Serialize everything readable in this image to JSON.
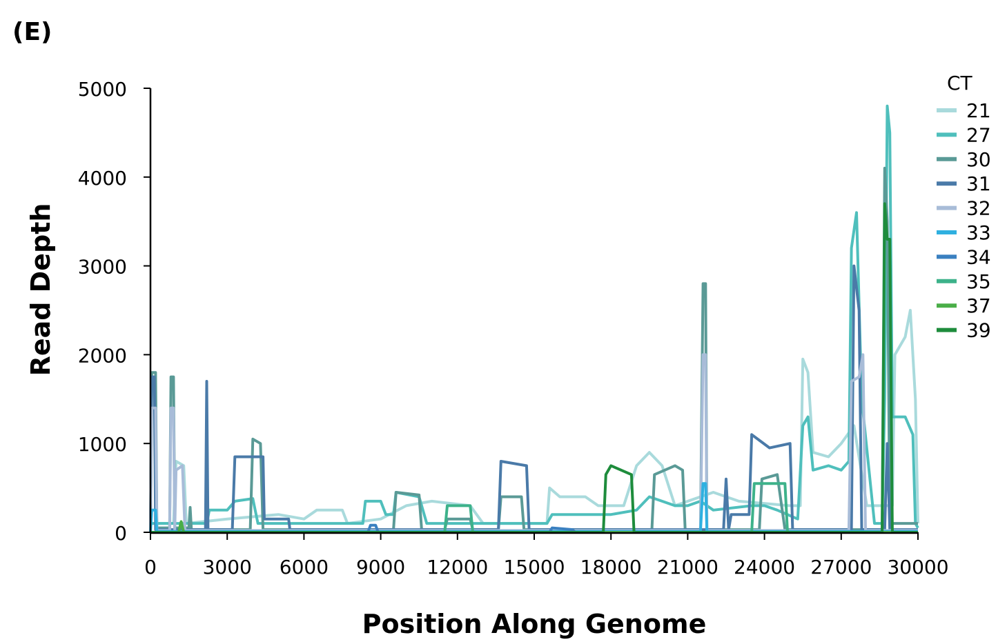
{
  "panel_label": "(E)",
  "chart_data": {
    "type": "line",
    "title": "",
    "xlabel": "Position Along Genome",
    "ylabel": "Read Depth",
    "xlim": [
      0,
      30000
    ],
    "ylim": [
      0,
      5000
    ],
    "xticks": [
      0,
      3000,
      6000,
      9000,
      12000,
      15000,
      18000,
      21000,
      24000,
      27000,
      30000
    ],
    "yticks": [
      0,
      1000,
      2000,
      3000,
      4000,
      5000
    ],
    "grid": false,
    "legend": {
      "title": "CT",
      "placement": "top-right"
    },
    "series": [
      {
        "name": "21",
        "color": "#a9dadc",
        "points": [
          [
            0,
            100
          ],
          [
            900,
            100
          ],
          [
            1000,
            800
          ],
          [
            1300,
            750
          ],
          [
            1400,
            100
          ],
          [
            3000,
            150
          ],
          [
            5000,
            200
          ],
          [
            6000,
            150
          ],
          [
            6500,
            250
          ],
          [
            7500,
            250
          ],
          [
            7700,
            100
          ],
          [
            9000,
            150
          ],
          [
            10000,
            300
          ],
          [
            11000,
            350
          ],
          [
            12500,
            300
          ],
          [
            13000,
            100
          ],
          [
            15500,
            100
          ],
          [
            15600,
            500
          ],
          [
            16000,
            400
          ],
          [
            17000,
            400
          ],
          [
            17500,
            300
          ],
          [
            18500,
            300
          ],
          [
            19000,
            750
          ],
          [
            19500,
            900
          ],
          [
            20000,
            750
          ],
          [
            20500,
            300
          ],
          [
            22000,
            450
          ],
          [
            23000,
            350
          ],
          [
            25000,
            300
          ],
          [
            25400,
            300
          ],
          [
            25500,
            1950
          ],
          [
            25700,
            1800
          ],
          [
            25900,
            900
          ],
          [
            26500,
            850
          ],
          [
            27000,
            1000
          ],
          [
            27500,
            1200
          ],
          [
            28000,
            300
          ],
          [
            29000,
            300
          ],
          [
            29100,
            2000
          ],
          [
            29500,
            2200
          ],
          [
            29700,
            2500
          ],
          [
            29900,
            1500
          ],
          [
            30000,
            100
          ]
        ]
      },
      {
        "name": "27",
        "color": "#4fbfbc",
        "points": [
          [
            0,
            100
          ],
          [
            2200,
            100
          ],
          [
            2300,
            250
          ],
          [
            3000,
            250
          ],
          [
            3300,
            350
          ],
          [
            4000,
            380
          ],
          [
            4200,
            100
          ],
          [
            6000,
            100
          ],
          [
            8300,
            100
          ],
          [
            8400,
            350
          ],
          [
            9000,
            350
          ],
          [
            9200,
            200
          ],
          [
            9500,
            200
          ],
          [
            9600,
            450
          ],
          [
            10500,
            400
          ],
          [
            10800,
            100
          ],
          [
            15500,
            100
          ],
          [
            15700,
            200
          ],
          [
            17500,
            200
          ],
          [
            18000,
            200
          ],
          [
            19000,
            250
          ],
          [
            19500,
            400
          ],
          [
            20000,
            350
          ],
          [
            20500,
            300
          ],
          [
            21000,
            300
          ],
          [
            21500,
            350
          ],
          [
            22000,
            250
          ],
          [
            23500,
            300
          ],
          [
            24000,
            300
          ],
          [
            24500,
            250
          ],
          [
            25300,
            150
          ],
          [
            25500,
            1200
          ],
          [
            25700,
            1300
          ],
          [
            25900,
            700
          ],
          [
            26500,
            750
          ],
          [
            27000,
            700
          ],
          [
            27300,
            800
          ],
          [
            27400,
            3200
          ],
          [
            27600,
            3600
          ],
          [
            27800,
            1500
          ],
          [
            28300,
            100
          ],
          [
            28600,
            100
          ],
          [
            28700,
            1500
          ],
          [
            28800,
            4800
          ],
          [
            28900,
            4500
          ],
          [
            29000,
            1300
          ],
          [
            29500,
            1300
          ],
          [
            29800,
            1100
          ],
          [
            29900,
            100
          ],
          [
            30000,
            50
          ]
        ]
      },
      {
        "name": "30",
        "color": "#5a9a96",
        "points": [
          [
            0,
            0
          ],
          [
            50,
            1800
          ],
          [
            200,
            1800
          ],
          [
            250,
            50
          ],
          [
            750,
            50
          ],
          [
            800,
            1750
          ],
          [
            900,
            1750
          ],
          [
            950,
            50
          ],
          [
            1500,
            50
          ],
          [
            1550,
            280
          ],
          [
            1600,
            30
          ],
          [
            3900,
            30
          ],
          [
            4000,
            1050
          ],
          [
            4300,
            1000
          ],
          [
            4400,
            30
          ],
          [
            9500,
            30
          ],
          [
            9600,
            450
          ],
          [
            10500,
            420
          ],
          [
            10600,
            30
          ],
          [
            11500,
            30
          ],
          [
            11600,
            150
          ],
          [
            12500,
            150
          ],
          [
            12600,
            30
          ],
          [
            13600,
            30
          ],
          [
            13700,
            400
          ],
          [
            14500,
            400
          ],
          [
            14600,
            30
          ],
          [
            19600,
            30
          ],
          [
            19700,
            650
          ],
          [
            20500,
            750
          ],
          [
            20800,
            700
          ],
          [
            20900,
            30
          ],
          [
            21500,
            30
          ],
          [
            21600,
            2800
          ],
          [
            21700,
            2800
          ],
          [
            21750,
            30
          ],
          [
            23800,
            30
          ],
          [
            23900,
            600
          ],
          [
            24500,
            650
          ],
          [
            24800,
            30
          ],
          [
            28600,
            30
          ],
          [
            28700,
            4100
          ],
          [
            28800,
            3500
          ],
          [
            28900,
            100
          ],
          [
            30000,
            100
          ]
        ]
      },
      {
        "name": "31",
        "color": "#4a7aa8",
        "points": [
          [
            0,
            0
          ],
          [
            50,
            1750
          ],
          [
            150,
            1750
          ],
          [
            200,
            30
          ],
          [
            2150,
            30
          ],
          [
            2200,
            1700
          ],
          [
            2250,
            30
          ],
          [
            3200,
            30
          ],
          [
            3300,
            850
          ],
          [
            4400,
            850
          ],
          [
            4450,
            150
          ],
          [
            5400,
            150
          ],
          [
            5450,
            30
          ],
          [
            13600,
            30
          ],
          [
            13700,
            800
          ],
          [
            14700,
            750
          ],
          [
            14800,
            30
          ],
          [
            22400,
            30
          ],
          [
            22500,
            600
          ],
          [
            22600,
            30
          ],
          [
            22700,
            200
          ],
          [
            23400,
            200
          ],
          [
            23500,
            1100
          ],
          [
            24200,
            950
          ],
          [
            25000,
            1000
          ],
          [
            25100,
            30
          ],
          [
            27400,
            30
          ],
          [
            27500,
            3000
          ],
          [
            27700,
            2500
          ],
          [
            27800,
            30
          ],
          [
            28700,
            30
          ],
          [
            28800,
            1000
          ],
          [
            28900,
            30
          ],
          [
            30000,
            30
          ]
        ]
      },
      {
        "name": "32",
        "color": "#a8bcd8",
        "points": [
          [
            0,
            0
          ],
          [
            50,
            1400
          ],
          [
            200,
            1400
          ],
          [
            250,
            20
          ],
          [
            750,
            20
          ],
          [
            800,
            1400
          ],
          [
            900,
            1400
          ],
          [
            950,
            20
          ],
          [
            1000,
            700
          ],
          [
            1250,
            750
          ],
          [
            1350,
            20
          ],
          [
            21500,
            20
          ],
          [
            21600,
            2000
          ],
          [
            21700,
            2000
          ],
          [
            21750,
            20
          ],
          [
            27300,
            20
          ],
          [
            27400,
            1700
          ],
          [
            27700,
            1750
          ],
          [
            27850,
            2000
          ],
          [
            27950,
            20
          ],
          [
            30000,
            20
          ]
        ]
      },
      {
        "name": "33",
        "color": "#2fb0e0",
        "points": [
          [
            0,
            0
          ],
          [
            50,
            250
          ],
          [
            200,
            250
          ],
          [
            250,
            10
          ],
          [
            21500,
            10
          ],
          [
            21600,
            550
          ],
          [
            21700,
            550
          ],
          [
            21750,
            10
          ],
          [
            30000,
            10
          ]
        ]
      },
      {
        "name": "34",
        "color": "#3a80c0",
        "points": [
          [
            0,
            0
          ],
          [
            8500,
            0
          ],
          [
            8600,
            80
          ],
          [
            8800,
            80
          ],
          [
            8900,
            0
          ],
          [
            15600,
            0
          ],
          [
            15700,
            50
          ],
          [
            16500,
            30
          ],
          [
            16600,
            0
          ],
          [
            30000,
            0
          ]
        ]
      },
      {
        "name": "35",
        "color": "#3db28a",
        "points": [
          [
            0,
            0
          ],
          [
            11500,
            0
          ],
          [
            11600,
            300
          ],
          [
            12500,
            300
          ],
          [
            12600,
            0
          ],
          [
            23500,
            0
          ],
          [
            23600,
            550
          ],
          [
            24800,
            550
          ],
          [
            24900,
            0
          ],
          [
            30000,
            0
          ]
        ]
      },
      {
        "name": "37",
        "color": "#4aae48",
        "points": [
          [
            0,
            0
          ],
          [
            1100,
            0
          ],
          [
            1200,
            120
          ],
          [
            1300,
            0
          ],
          [
            30000,
            0
          ]
        ]
      },
      {
        "name": "39",
        "color": "#1e8c3c",
        "points": [
          [
            0,
            0
          ],
          [
            17700,
            0
          ],
          [
            17800,
            650
          ],
          [
            18000,
            750
          ],
          [
            18800,
            650
          ],
          [
            18900,
            0
          ],
          [
            28600,
            0
          ],
          [
            28700,
            3700
          ],
          [
            28800,
            3300
          ],
          [
            28900,
            3300
          ],
          [
            29000,
            0
          ],
          [
            30000,
            0
          ]
        ]
      }
    ]
  }
}
